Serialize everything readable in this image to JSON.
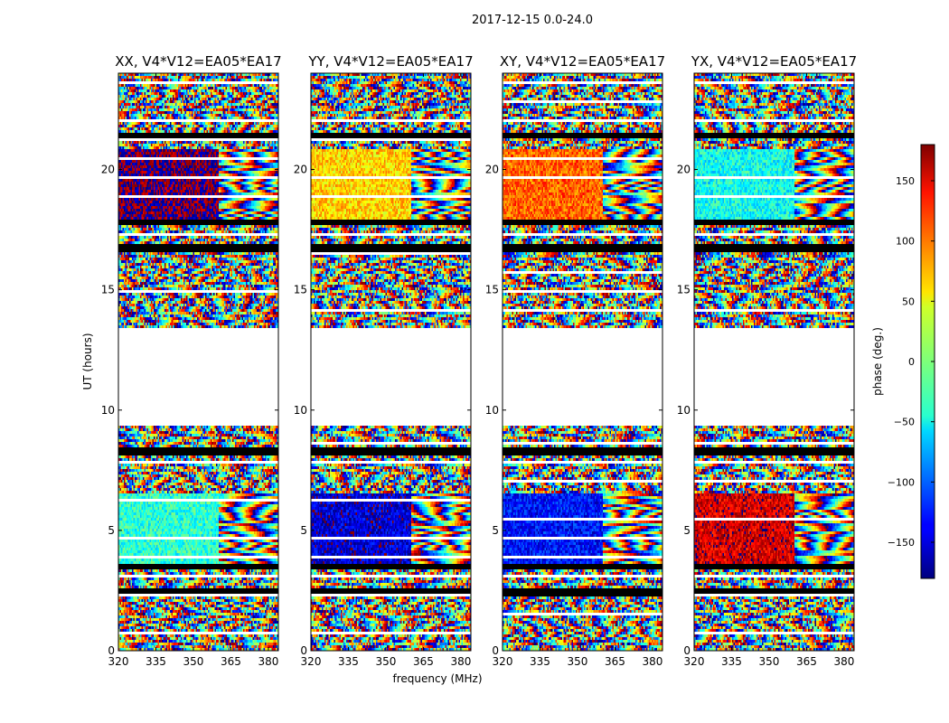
{
  "figure": {
    "suptitle": "2017-12-15 0.0-24.0"
  },
  "chart_data": {
    "type": "heatmap",
    "xlabel": "frequency (MHz)",
    "ylabel": "UT (hours)",
    "xlim": [
      320,
      384
    ],
    "ylim": [
      0,
      24
    ],
    "xticks": [
      "320",
      "335",
      "350",
      "365",
      "380"
    ],
    "xtick_values": [
      320,
      335,
      350,
      365,
      380
    ],
    "yticks": [
      "0",
      "5",
      "10",
      "15",
      "20"
    ],
    "ytick_values": [
      0,
      5,
      10,
      15,
      20
    ],
    "no_data_ut_ranges": [
      [
        9.3,
        13.4
      ]
    ],
    "flagged_ut_rows": [
      2.4,
      3.5,
      8.3,
      16.7,
      17.8,
      21.4
    ],
    "panels": [
      {
        "title": "XX, V4*V12=EA05*EA17",
        "smooth_phase_hi": 180,
        "smooth_phase_lo": -30
      },
      {
        "title": "YY, V4*V12=EA05*EA17",
        "smooth_phase_hi": 60,
        "smooth_phase_lo": -150
      },
      {
        "title": "XY, V4*V12=EA05*EA17",
        "smooth_phase_hi": 100,
        "smooth_phase_lo": -130
      },
      {
        "title": "YX, V4*V12=EA05*EA17",
        "smooth_phase_hi": -40,
        "smooth_phase_lo": 150
      }
    ],
    "colorbar": {
      "label": "phase (deg.)",
      "range": [
        -180,
        180
      ],
      "ticks": [
        "150",
        "100",
        "50",
        "0",
        "−50",
        "−100",
        "−150"
      ],
      "tick_values": [
        150,
        100,
        50,
        0,
        -50,
        -100,
        -150
      ],
      "colormap": "jet"
    }
  }
}
